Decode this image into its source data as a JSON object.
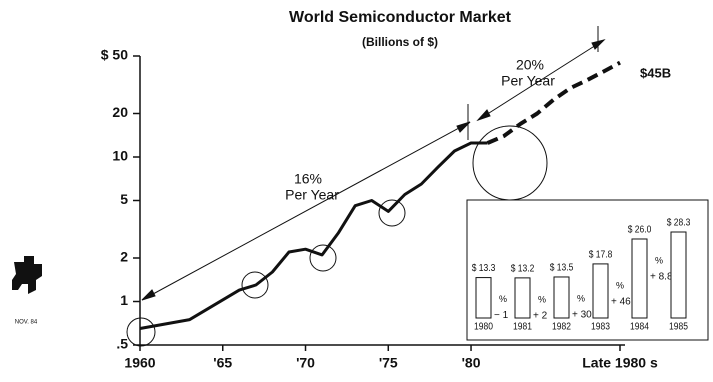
{
  "chart_data": [
    {
      "type": "line",
      "title": "World Semiconductor Market",
      "subtitle": "(Billions of $)",
      "log_scale": true,
      "xlim": [
        1960,
        1989
      ],
      "ylim": [
        0.5,
        50
      ],
      "yticks": [
        {
          "value": 50,
          "label": "$ 50"
        },
        20,
        10,
        5,
        2,
        1,
        {
          "value": 0.5,
          "label": ".5"
        }
      ],
      "xticks": [
        1960,
        {
          "value": 1965,
          "label": "'65"
        },
        {
          "value": 1970,
          "label": "'70"
        },
        {
          "value": 1975,
          "label": "'75"
        },
        {
          "value": 1980,
          "label": "'80"
        },
        {
          "value": 1989,
          "label": "Late 1980 s"
        }
      ],
      "series": [
        {
          "color": "#111111",
          "style": "solid",
          "x": [
            1960,
            1963,
            1966,
            1967,
            1968,
            1969,
            1970,
            1971,
            1972,
            1973,
            1974,
            1975,
            1976,
            1977,
            1978,
            1979,
            1980,
            1981
          ],
          "values": [
            0.65,
            0.75,
            1.2,
            1.3,
            1.6,
            2.2,
            2.3,
            2.1,
            3,
            4.6,
            5,
            4.2,
            5.5,
            6.5,
            8.5,
            11,
            12.5,
            12.5
          ]
        },
        {
          "color": "#111111",
          "style": "dashed",
          "x": [
            1981,
            1982,
            1983,
            1984,
            1985,
            1986,
            1987,
            1988,
            1989
          ],
          "values": [
            12.5,
            14,
            17,
            20,
            25,
            30,
            34,
            39,
            45
          ]
        }
      ],
      "annotations": [
        {
          "text": [
            "16%",
            "Per Year"
          ]
        },
        {
          "text": [
            "20%",
            "Per Year"
          ]
        },
        {
          "text": [
            "$45B"
          ]
        }
      ]
    },
    {
      "type": "bar",
      "categories": [
        "1980",
        "1981",
        "1982",
        "1983",
        "1984",
        "1985"
      ],
      "values": [
        13.3,
        13.2,
        13.5,
        17.8,
        26.0,
        28.3
      ],
      "value_labels": [
        "$ 13.3",
        "$ 13.2",
        "$ 13.5",
        "$ 17.8",
        "$ 26.0",
        "$ 28.3"
      ],
      "growth_unit": "%",
      "growth": [
        -1,
        2,
        30,
        46,
        8.8
      ],
      "growth_labels": [
        "− 1",
        "+ 2",
        "+ 30",
        "+ 46",
        "+ 8.8"
      ],
      "color": "#ffffff"
    }
  ],
  "logo_text": "NOV. 84"
}
